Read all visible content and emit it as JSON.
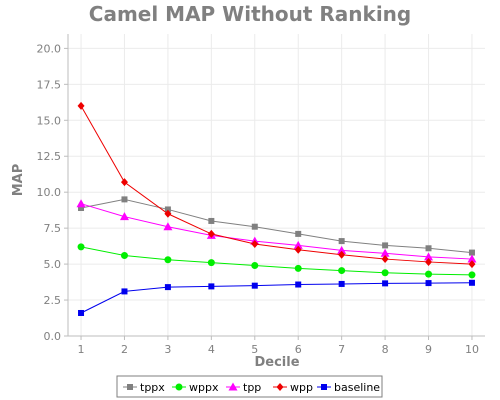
{
  "chart_data": {
    "type": "line",
    "title": "Camel MAP Without Ranking",
    "xlabel": "Decile",
    "ylabel": "MAP",
    "x": [
      1,
      2,
      3,
      4,
      5,
      6,
      7,
      8,
      9,
      10
    ],
    "xlim": [
      0.7,
      10.3
    ],
    "ylim": [
      0,
      21
    ],
    "y_ticks": [
      0.0,
      2.5,
      5.0,
      7.5,
      10.0,
      12.5,
      15.0,
      17.5,
      20.0
    ],
    "y_tick_labels": [
      "0.0",
      "2.5",
      "5.0",
      "7.5",
      "10.0",
      "12.5",
      "15.0",
      "17.5",
      "20.0"
    ],
    "x_tick_labels": [
      "1",
      "2",
      "3",
      "4",
      "5",
      "6",
      "7",
      "8",
      "9",
      "10"
    ],
    "grid": true,
    "legend_position": "bottom",
    "series": [
      {
        "name": "tppx",
        "color": "#808080",
        "marker": "square",
        "values": [
          8.9,
          9.5,
          8.8,
          8.0,
          7.6,
          7.1,
          6.6,
          6.3,
          6.1,
          5.8
        ]
      },
      {
        "name": "wppx",
        "color": "#00ee00",
        "marker": "circle",
        "values": [
          6.2,
          5.6,
          5.3,
          5.1,
          4.9,
          4.7,
          4.55,
          4.4,
          4.3,
          4.25
        ]
      },
      {
        "name": "tpp",
        "color": "#ff00ff",
        "marker": "triangle",
        "values": [
          9.2,
          8.3,
          7.6,
          7.0,
          6.6,
          6.3,
          5.95,
          5.75,
          5.5,
          5.35
        ]
      },
      {
        "name": "wpp",
        "color": "#ee0000",
        "marker": "diamond",
        "values": [
          16.0,
          10.7,
          8.5,
          7.1,
          6.4,
          6.0,
          5.65,
          5.35,
          5.15,
          5.0
        ]
      },
      {
        "name": "baseline",
        "color": "#0000ee",
        "marker": "square",
        "values": [
          1.6,
          3.1,
          3.4,
          3.45,
          3.5,
          3.58,
          3.62,
          3.66,
          3.68,
          3.7
        ]
      }
    ]
  }
}
